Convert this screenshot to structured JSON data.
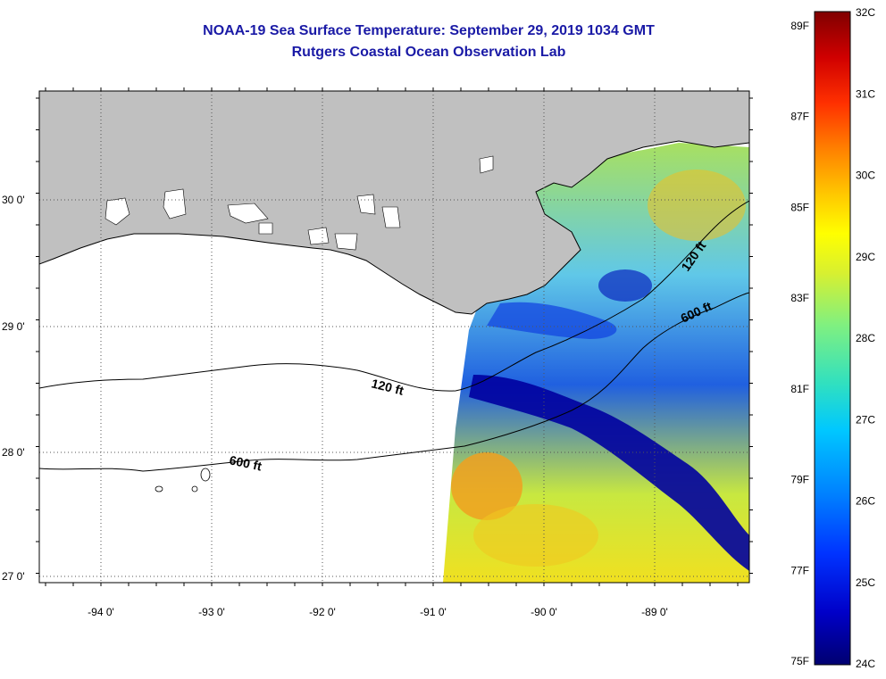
{
  "title": {
    "line1": "NOAA-19 Sea Surface Temperature:  September 29, 2019 1034 GMT",
    "line2": "Rutgers Coastal Ocean Observation Lab"
  },
  "map": {
    "lat_labels": [
      "30 0'",
      "29 0'",
      "28 0'",
      "27 0'"
    ],
    "lon_labels": [
      "-94 0'",
      "-93 0'",
      "-92 0'",
      "-91 0'",
      "-90 0'",
      "-89 0'"
    ],
    "contours": {
      "c120_west": "120 ft",
      "c600_west": "600 ft",
      "c120_east": "120 ft",
      "c600_east": "600 ft"
    }
  },
  "colorbar": {
    "fahrenheit": [
      "89F",
      "87F",
      "85F",
      "83F",
      "81F",
      "79F",
      "77F",
      "75F"
    ],
    "celsius": [
      "32C",
      "31C",
      "30C",
      "29C",
      "28C",
      "27C",
      "26C",
      "25C",
      "24C"
    ],
    "colors": [
      "#000080",
      "#0000c8",
      "#0033ff",
      "#0080ff",
      "#00c8ff",
      "#30e0c0",
      "#80f080",
      "#c8f040",
      "#ffff00",
      "#ffc800",
      "#ff8000",
      "#ff3000",
      "#d00000",
      "#800000"
    ]
  },
  "colors": {
    "land": "#c0c0c0",
    "water_no_data": "#ffffff",
    "title": "#1a1aa6"
  }
}
